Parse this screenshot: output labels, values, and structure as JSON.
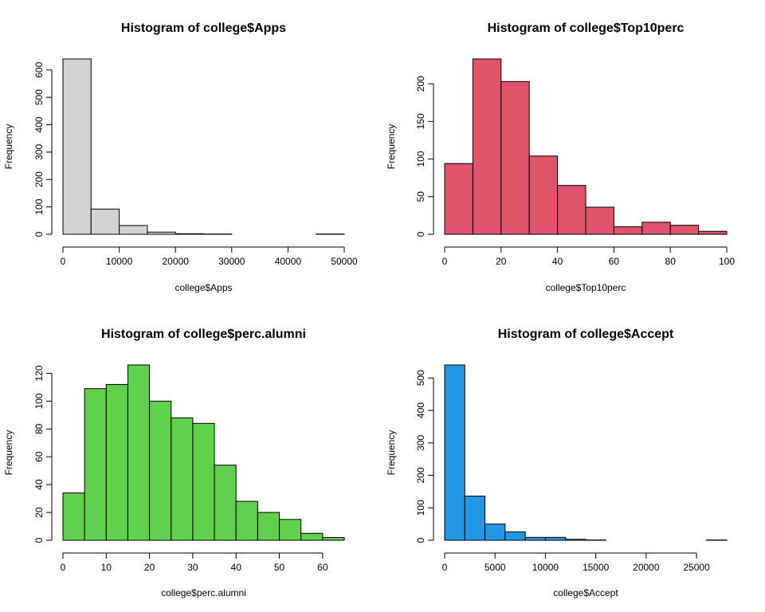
{
  "colors": {
    "background": "#ffffff",
    "panel1_fill": "#d3d3d3",
    "panel2_fill": "#df536b",
    "panel3_fill": "#61d04f",
    "panel4_fill": "#2297e6",
    "bar_stroke": "#000000"
  },
  "chart_data": [
    {
      "type": "bar",
      "title": "Histogram of college$Apps",
      "xlabel": "college$Apps",
      "ylabel": "Frequency",
      "fill": "#d3d3d3",
      "bin_edges": [
        0,
        5000,
        10000,
        15000,
        20000,
        25000,
        30000,
        35000,
        40000,
        45000,
        50000
      ],
      "values": [
        640,
        92,
        32,
        8,
        2,
        1,
        0,
        0,
        0,
        1
      ],
      "xlim": [
        0,
        50000
      ],
      "ylim": [
        0,
        640
      ],
      "xticks": [
        0,
        10000,
        20000,
        30000,
        40000,
        50000
      ],
      "yticks": [
        0,
        100,
        200,
        300,
        400,
        500,
        600
      ]
    },
    {
      "type": "bar",
      "title": "Histogram of college$Top10perc",
      "xlabel": "college$Top10perc",
      "ylabel": "Frequency",
      "fill": "#df536b",
      "bin_edges": [
        0,
        10,
        20,
        30,
        40,
        50,
        60,
        70,
        80,
        90,
        100
      ],
      "values": [
        94,
        233,
        203,
        104,
        65,
        36,
        10,
        16,
        12,
        4
      ],
      "xlim": [
        0,
        100
      ],
      "ylim": [
        0,
        233
      ],
      "xticks": [
        0,
        20,
        40,
        60,
        80,
        100
      ],
      "yticks": [
        0,
        50,
        100,
        150,
        200
      ]
    },
    {
      "type": "bar",
      "title": "Histogram of college$perc.alumni",
      "xlabel": "college$perc.alumni",
      "ylabel": "Frequency",
      "fill": "#61d04f",
      "bin_edges": [
        0,
        5,
        10,
        15,
        20,
        25,
        30,
        35,
        40,
        45,
        50,
        55,
        60,
        65
      ],
      "values": [
        34,
        109,
        112,
        126,
        100,
        88,
        84,
        54,
        28,
        20,
        15,
        5,
        2
      ],
      "xlim": [
        0,
        65
      ],
      "ylim": [
        0,
        126
      ],
      "xticks": [
        0,
        10,
        20,
        30,
        40,
        50,
        60
      ],
      "yticks": [
        0,
        20,
        40,
        60,
        80,
        100,
        120
      ]
    },
    {
      "type": "bar",
      "title": "Histogram of college$Accept",
      "xlabel": "college$Accept",
      "ylabel": "Frequency",
      "fill": "#2297e6",
      "bin_edges": [
        0,
        2000,
        4000,
        6000,
        8000,
        10000,
        12000,
        14000,
        16000,
        18000,
        20000,
        22000,
        24000,
        26000,
        28000
      ],
      "values": [
        540,
        136,
        50,
        26,
        9,
        9,
        3,
        1,
        0,
        0,
        0,
        0,
        0,
        1
      ],
      "xlim": [
        0,
        28000
      ],
      "ylim": [
        0,
        540
      ],
      "xticks": [
        0,
        5000,
        10000,
        15000,
        20000,
        25000
      ],
      "yticks": [
        0,
        100,
        200,
        300,
        400,
        500
      ]
    }
  ]
}
